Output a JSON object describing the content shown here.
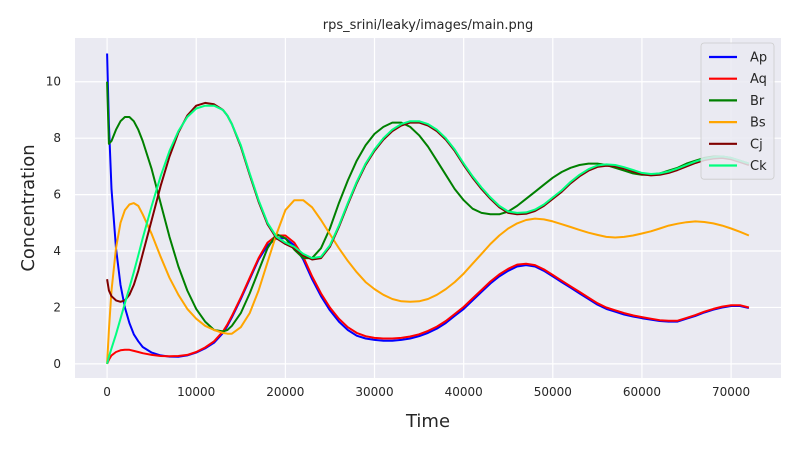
{
  "chart_data": {
    "type": "line",
    "title": "rps_srini/leaky/images/main.png",
    "xlabel": "Time",
    "ylabel": "Concentration",
    "xlim": [
      -3600,
      75600
    ],
    "ylim": [
      -0.5,
      11.55
    ],
    "xticks": [
      0,
      10000,
      20000,
      30000,
      40000,
      50000,
      60000,
      70000
    ],
    "yticks": [
      0,
      2,
      4,
      6,
      8,
      10
    ],
    "grid": true,
    "legend_position": "top-right",
    "x": [
      0,
      200,
      500,
      1000,
      1500,
      2000,
      2500,
      3000,
      3500,
      4000,
      5000,
      6000,
      7000,
      8000,
      9000,
      10000,
      11000,
      12000,
      13000,
      13500,
      14000,
      15000,
      16000,
      17000,
      18000,
      19000,
      20000,
      21000,
      22000,
      23000,
      24000,
      25000,
      26000,
      27000,
      28000,
      29000,
      30000,
      31000,
      32000,
      33000,
      34000,
      35000,
      36000,
      37000,
      38000,
      39000,
      40000,
      41000,
      42000,
      43000,
      44000,
      45000,
      46000,
      47000,
      48000,
      49000,
      50000,
      51000,
      52000,
      53000,
      54000,
      55000,
      56000,
      57000,
      58000,
      59000,
      60000,
      61000,
      62000,
      63000,
      64000,
      65000,
      66000,
      67000,
      68000,
      69000,
      70000,
      71000,
      72000
    ],
    "series": [
      {
        "name": "Ap",
        "color": "#0000ff",
        "values": [
          11.0,
          8.5,
          6.2,
          4.1,
          2.8,
          2.0,
          1.45,
          1.05,
          0.8,
          0.6,
          0.4,
          0.3,
          0.26,
          0.25,
          0.3,
          0.4,
          0.55,
          0.75,
          1.1,
          1.35,
          1.65,
          2.3,
          3.0,
          3.7,
          4.2,
          4.45,
          4.45,
          4.2,
          3.7,
          3.0,
          2.4,
          1.9,
          1.5,
          1.2,
          1.0,
          0.9,
          0.85,
          0.82,
          0.82,
          0.85,
          0.9,
          0.98,
          1.1,
          1.25,
          1.45,
          1.7,
          1.95,
          2.25,
          2.55,
          2.85,
          3.1,
          3.3,
          3.45,
          3.5,
          3.45,
          3.3,
          3.1,
          2.9,
          2.7,
          2.5,
          2.3,
          2.1,
          1.95,
          1.85,
          1.75,
          1.68,
          1.62,
          1.57,
          1.52,
          1.5,
          1.5,
          1.6,
          1.7,
          1.82,
          1.92,
          2.0,
          2.05,
          2.05,
          1.98
        ]
      },
      {
        "name": "Aq",
        "color": "#ff0000",
        "values": [
          0.0,
          0.15,
          0.3,
          0.42,
          0.48,
          0.5,
          0.5,
          0.46,
          0.42,
          0.38,
          0.32,
          0.28,
          0.27,
          0.28,
          0.32,
          0.42,
          0.58,
          0.8,
          1.15,
          1.4,
          1.7,
          2.35,
          3.05,
          3.75,
          4.3,
          4.55,
          4.55,
          4.3,
          3.8,
          3.1,
          2.5,
          2.0,
          1.6,
          1.3,
          1.1,
          0.98,
          0.92,
          0.9,
          0.9,
          0.92,
          0.97,
          1.05,
          1.17,
          1.32,
          1.52,
          1.77,
          2.02,
          2.32,
          2.62,
          2.92,
          3.17,
          3.37,
          3.52,
          3.55,
          3.5,
          3.35,
          3.15,
          2.95,
          2.75,
          2.55,
          2.35,
          2.15,
          2.0,
          1.9,
          1.8,
          1.72,
          1.66,
          1.6,
          1.55,
          1.53,
          1.53,
          1.63,
          1.73,
          1.85,
          1.95,
          2.03,
          2.08,
          2.08,
          2.0
        ]
      },
      {
        "name": "Br",
        "color": "#008000",
        "values": [
          10.0,
          7.8,
          7.9,
          8.3,
          8.6,
          8.75,
          8.75,
          8.6,
          8.3,
          7.9,
          6.9,
          5.7,
          4.5,
          3.45,
          2.6,
          1.95,
          1.5,
          1.2,
          1.15,
          1.2,
          1.35,
          1.8,
          2.5,
          3.3,
          4.1,
          4.6,
          4.45,
          4.05,
          3.75,
          3.75,
          4.1,
          4.8,
          5.7,
          6.5,
          7.2,
          7.75,
          8.15,
          8.4,
          8.55,
          8.55,
          8.4,
          8.1,
          7.7,
          7.2,
          6.7,
          6.2,
          5.8,
          5.5,
          5.35,
          5.3,
          5.3,
          5.4,
          5.6,
          5.85,
          6.1,
          6.35,
          6.6,
          6.8,
          6.95,
          7.05,
          7.1,
          7.1,
          7.05,
          6.95,
          6.85,
          6.75,
          6.7,
          6.7,
          6.75,
          6.85,
          6.95,
          7.1,
          7.2,
          7.3,
          7.35,
          7.35,
          7.3,
          7.2,
          7.1
        ]
      },
      {
        "name": "Bs",
        "color": "#ffa500",
        "values": [
          0.0,
          1.2,
          2.6,
          4.1,
          5.0,
          5.45,
          5.65,
          5.7,
          5.6,
          5.3,
          4.6,
          3.8,
          3.05,
          2.45,
          1.95,
          1.6,
          1.35,
          1.2,
          1.1,
          1.07,
          1.07,
          1.3,
          1.8,
          2.6,
          3.6,
          4.6,
          5.45,
          5.8,
          5.8,
          5.55,
          5.1,
          4.6,
          4.1,
          3.65,
          3.25,
          2.9,
          2.65,
          2.45,
          2.3,
          2.22,
          2.2,
          2.22,
          2.3,
          2.45,
          2.65,
          2.9,
          3.2,
          3.55,
          3.9,
          4.25,
          4.55,
          4.8,
          4.98,
          5.1,
          5.15,
          5.12,
          5.05,
          4.95,
          4.85,
          4.75,
          4.65,
          4.57,
          4.5,
          4.48,
          4.5,
          4.55,
          4.62,
          4.7,
          4.8,
          4.9,
          4.97,
          5.02,
          5.05,
          5.03,
          4.98,
          4.9,
          4.8,
          4.68,
          4.55
        ]
      },
      {
        "name": "Cj",
        "color": "#800000",
        "values": [
          3.0,
          2.6,
          2.4,
          2.25,
          2.2,
          2.25,
          2.45,
          2.8,
          3.3,
          3.9,
          5.1,
          6.3,
          7.35,
          8.2,
          8.8,
          9.15,
          9.25,
          9.2,
          9.0,
          8.8,
          8.5,
          7.7,
          6.7,
          5.75,
          4.95,
          4.45,
          4.25,
          4.1,
          3.85,
          3.7,
          3.75,
          4.15,
          4.85,
          5.65,
          6.4,
          7.05,
          7.55,
          7.95,
          8.25,
          8.45,
          8.55,
          8.55,
          8.45,
          8.25,
          7.95,
          7.55,
          7.05,
          6.6,
          6.2,
          5.85,
          5.55,
          5.35,
          5.3,
          5.32,
          5.42,
          5.6,
          5.85,
          6.1,
          6.4,
          6.65,
          6.85,
          6.98,
          7.02,
          7.0,
          6.92,
          6.82,
          6.72,
          6.68,
          6.7,
          6.77,
          6.87,
          7.0,
          7.12,
          7.22,
          7.28,
          7.3,
          7.25,
          7.15,
          7.05
        ]
      },
      {
        "name": "Ck",
        "color": "#00ff7f",
        "values": [
          0.0,
          0.25,
          0.55,
          1.05,
          1.6,
          2.15,
          2.7,
          3.25,
          3.85,
          4.45,
          5.6,
          6.65,
          7.55,
          8.25,
          8.75,
          9.05,
          9.15,
          9.15,
          9.0,
          8.8,
          8.5,
          7.75,
          6.75,
          5.8,
          5.0,
          4.5,
          4.3,
          4.15,
          3.9,
          3.75,
          3.8,
          4.2,
          4.9,
          5.7,
          6.45,
          7.1,
          7.6,
          8.0,
          8.3,
          8.5,
          8.6,
          8.6,
          8.5,
          8.3,
          8.0,
          7.6,
          7.1,
          6.65,
          6.25,
          5.9,
          5.6,
          5.4,
          5.35,
          5.37,
          5.47,
          5.65,
          5.9,
          6.15,
          6.45,
          6.7,
          6.9,
          7.03,
          7.07,
          7.05,
          6.97,
          6.87,
          6.77,
          6.73,
          6.75,
          6.82,
          6.92,
          7.05,
          7.17,
          7.27,
          7.33,
          7.35,
          7.3,
          7.2,
          7.1
        ]
      }
    ]
  }
}
